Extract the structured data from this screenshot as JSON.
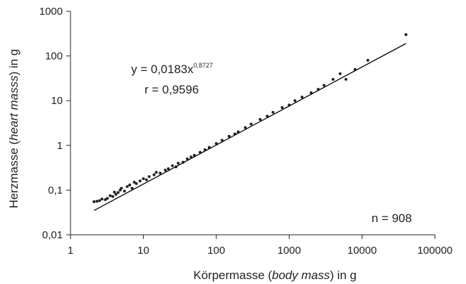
{
  "chart_data": {
    "type": "scatter",
    "x_scale": "log",
    "y_scale": "log",
    "xlim": [
      1,
      100000
    ],
    "ylim": [
      0.01,
      1000
    ],
    "x_ticks": [
      1,
      10,
      100,
      1000,
      10000,
      100000
    ],
    "y_ticks": [
      0.01,
      0.1,
      1,
      10,
      100,
      1000
    ],
    "x_tick_labels": [
      "1",
      "10",
      "100",
      "1000",
      "10000",
      "100000"
    ],
    "y_tick_labels": [
      "0,01",
      "0,1",
      "1",
      "10",
      "100",
      "1000"
    ],
    "xlabel": {
      "prefix": "Körpermasse (",
      "italic": "body mass",
      "suffix": ") in g"
    },
    "ylabel": {
      "prefix": "Herzmasse (",
      "italic": "heart masss",
      "suffix": ") in g"
    },
    "grid": false,
    "legend": "none",
    "marker_color": "#231f20",
    "line_color": "#000000",
    "fit": {
      "label_main": "y = 0,0183x",
      "label_exponent": "0,8727",
      "r_label": "r = 0,9596",
      "coefficient": 0.0183,
      "exponent": 0.8727,
      "x_range": [
        2.1,
        40000
      ]
    },
    "n_label": "n = 908",
    "n_points": 908,
    "series": [
      {
        "points": [
          [
            2.1,
            0.055
          ],
          [
            2.3,
            0.056
          ],
          [
            2.5,
            0.058
          ],
          [
            2.7,
            0.063
          ],
          [
            3.0,
            0.061
          ],
          [
            3.2,
            0.065
          ],
          [
            3.5,
            0.075
          ],
          [
            3.8,
            0.072
          ],
          [
            4.0,
            0.09
          ],
          [
            4.2,
            0.08
          ],
          [
            4.5,
            0.088
          ],
          [
            4.8,
            0.1
          ],
          [
            5.0,
            0.11
          ],
          [
            5.5,
            0.095
          ],
          [
            6.0,
            0.12
          ],
          [
            6.5,
            0.13
          ],
          [
            7.0,
            0.11
          ],
          [
            7.5,
            0.15
          ],
          [
            8.0,
            0.14
          ],
          [
            9.0,
            0.16
          ],
          [
            10,
            0.18
          ],
          [
            11,
            0.17
          ],
          [
            12,
            0.2
          ],
          [
            14,
            0.22
          ],
          [
            15,
            0.25
          ],
          [
            17,
            0.24
          ],
          [
            20,
            0.28
          ],
          [
            22,
            0.3
          ],
          [
            25,
            0.35
          ],
          [
            28,
            0.33
          ],
          [
            30,
            0.4
          ],
          [
            35,
            0.42
          ],
          [
            40,
            0.5
          ],
          [
            45,
            0.55
          ],
          [
            50,
            0.6
          ],
          [
            60,
            0.7
          ],
          [
            70,
            0.8
          ],
          [
            80,
            0.9
          ],
          [
            100,
            1.1
          ],
          [
            120,
            1.3
          ],
          [
            150,
            1.6
          ],
          [
            180,
            1.8
          ],
          [
            200,
            2.0
          ],
          [
            250,
            2.5
          ],
          [
            300,
            3.0
          ],
          [
            400,
            3.8
          ],
          [
            500,
            4.5
          ],
          [
            600,
            5.5
          ],
          [
            800,
            7.0
          ],
          [
            1000,
            8.0
          ],
          [
            1200,
            10
          ],
          [
            1500,
            12
          ],
          [
            2000,
            15
          ],
          [
            2500,
            18
          ],
          [
            3000,
            22
          ],
          [
            4000,
            30
          ],
          [
            5000,
            40
          ],
          [
            6000,
            30
          ],
          [
            8000,
            50
          ],
          [
            12000,
            80
          ],
          [
            40000,
            300
          ]
        ]
      }
    ]
  }
}
